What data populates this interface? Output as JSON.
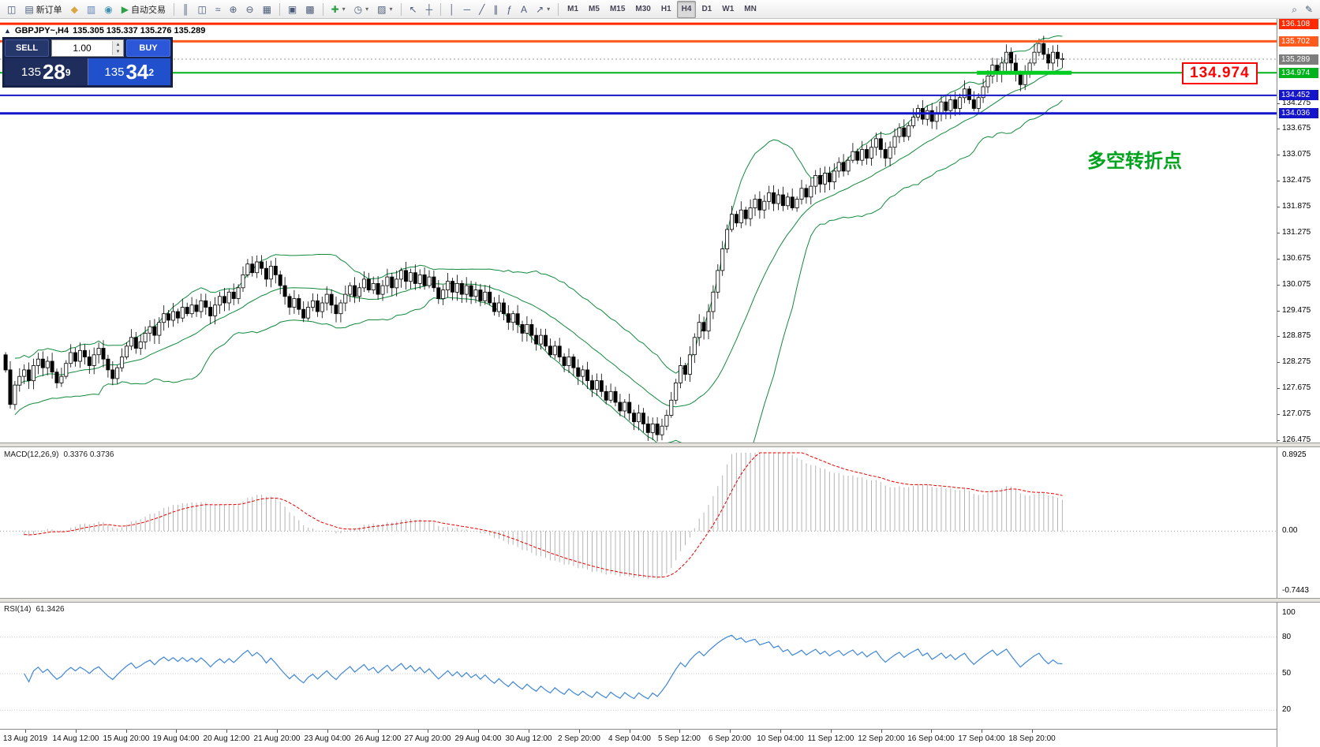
{
  "toolbar": {
    "caret_glyph": "▾",
    "groups": [
      {
        "name": "file-group",
        "items": [
          {
            "name": "new-chart",
            "glyph": "◫"
          },
          {
            "name": "new-order",
            "glyph": "▤",
            "label": "新订单"
          },
          {
            "name": "profiles",
            "glyph": "◆",
            "glyph_color": "#d9a441"
          },
          {
            "name": "charts-list",
            "glyph": "▥",
            "glyph_color": "#5b7fb9"
          },
          {
            "name": "signals",
            "glyph": "◉",
            "glyph_color": "#3f8fb0"
          },
          {
            "name": "autotrading",
            "glyph": "▶",
            "label": "自动交易",
            "glyph_color": "#2fa04a"
          }
        ]
      },
      {
        "name": "chart-type-group",
        "items": [
          {
            "name": "bar-chart-mode",
            "glyph": "║"
          },
          {
            "name": "candlestick-mode",
            "glyph": "◫"
          },
          {
            "name": "line-chart-mode",
            "glyph": "≈"
          },
          {
            "name": "zoom-in",
            "glyph": "⊕"
          },
          {
            "name": "zoom-out",
            "glyph": "⊖"
          },
          {
            "name": "grid-toggle",
            "glyph": "▦"
          }
        ]
      },
      {
        "name": "window-group",
        "items": [
          {
            "name": "tile-windows",
            "glyph": "▣"
          },
          {
            "name": "cascade-windows",
            "glyph": "▩"
          }
        ]
      },
      {
        "name": "tools-group",
        "items": [
          {
            "name": "indicators",
            "glyph": "✚",
            "glyph_color": "#2fa04a",
            "caret": true
          },
          {
            "name": "periods",
            "glyph": "◷",
            "caret": true
          },
          {
            "name": "templates",
            "glyph": "▨",
            "caret": true
          }
        ]
      },
      {
        "name": "cursor-group",
        "items": [
          {
            "name": "cursor",
            "glyph": "↖"
          },
          {
            "name": "crosshair",
            "glyph": "┼"
          }
        ]
      },
      {
        "name": "objects-group",
        "items": [
          {
            "name": "vertical-line-tool",
            "glyph": "│"
          },
          {
            "name": "horizontal-line-tool",
            "glyph": "─"
          },
          {
            "name": "trendline-tool",
            "glyph": "╱"
          },
          {
            "name": "channel-tool",
            "glyph": "∥"
          },
          {
            "name": "fibonacci-tool",
            "glyph": "ƒ"
          },
          {
            "name": "text-tool",
            "glyph": "A"
          },
          {
            "name": "arrows-tool",
            "glyph": "↗",
            "caret": true
          }
        ]
      }
    ],
    "timeframes": [
      "M1",
      "M5",
      "M15",
      "M30",
      "H1",
      "H4",
      "D1",
      "W1",
      "MN"
    ],
    "active_timeframe": "H4",
    "right_items": [
      {
        "name": "search",
        "glyph": "⌕"
      },
      {
        "name": "quick-edit",
        "glyph": "✎"
      }
    ]
  },
  "chart": {
    "collapse_glyph": "▲",
    "symbol_title": "GBPJPY~,H4",
    "ohlc": "135.305 135.337 135.276 135.289",
    "annotation": {
      "text": "多空转折点",
      "color": "#00a31e"
    },
    "key_level_label": "134.974",
    "key_level_color": "#ff0000",
    "macd_header": {
      "name": "MACD(12,26,9)",
      "values": "0.3376 0.3736"
    },
    "rsi_header": {
      "name": "RSI(14)",
      "value": "61.3426"
    }
  },
  "trade_panel": {
    "sell_label": "SELL",
    "buy_label": "BUY",
    "volume": "1.00",
    "spinner_up": "▴",
    "spinner_down": "▾",
    "sell_price": {
      "pre": "135",
      "big": "28",
      "sup": "9"
    },
    "buy_price": {
      "pre": "135",
      "big": "34",
      "sup": "2"
    }
  },
  "chart_data": {
    "type": "candlestick",
    "symbol": "GBPJPY",
    "timeframe": "H4",
    "price_axis": {
      "min": 126.42,
      "max": 136.22,
      "tick_step": 0.6,
      "ticks": [
        134.275,
        133.675,
        133.075,
        132.475,
        131.875,
        131.275,
        130.675,
        130.075,
        129.475,
        128.875,
        128.275,
        127.675,
        127.075,
        126.475
      ]
    },
    "x_labels": [
      "13 Aug 2019",
      "14 Aug 12:00",
      "15 Aug 20:00",
      "19 Aug 04:00",
      "20 Aug 12:00",
      "21 Aug 20:00",
      "23 Aug 04:00",
      "26 Aug 12:00",
      "27 Aug 20:00",
      "29 Aug 04:00",
      "30 Aug 12:00",
      "2 Sep 20:00",
      "4 Sep 04:00",
      "5 Sep 12:00",
      "6 Sep 20:00",
      "10 Sep 04:00",
      "11 Sep 12:00",
      "12 Sep 20:00",
      "16 Sep 04:00",
      "17 Sep 04:00",
      "18 Sep 20:00"
    ],
    "candles": {
      "first_open": 128.45,
      "closes": [
        128.1,
        127.3,
        127.75,
        127.95,
        128.1,
        127.85,
        128.2,
        128.35,
        128.15,
        128.3,
        128.05,
        127.8,
        127.95,
        128.25,
        128.5,
        128.3,
        128.55,
        128.4,
        128.2,
        128.45,
        128.6,
        128.35,
        128.1,
        127.9,
        128.15,
        128.4,
        128.65,
        128.85,
        128.6,
        128.75,
        128.95,
        129.1,
        128.9,
        129.2,
        129.4,
        129.25,
        129.45,
        129.3,
        129.55,
        129.4,
        129.6,
        129.45,
        129.7,
        129.55,
        129.35,
        129.6,
        129.8,
        129.65,
        129.9,
        129.75,
        130.0,
        130.3,
        130.55,
        130.35,
        130.6,
        130.45,
        130.2,
        130.5,
        130.3,
        130.05,
        129.8,
        129.55,
        129.75,
        129.5,
        129.3,
        129.55,
        129.7,
        129.45,
        129.65,
        129.85,
        129.6,
        129.4,
        129.65,
        129.85,
        130.05,
        129.8,
        130.0,
        130.2,
        129.95,
        130.1,
        129.85,
        130.05,
        130.25,
        130.0,
        130.2,
        130.4,
        130.15,
        130.35,
        130.1,
        130.3,
        130.05,
        130.25,
        130.0,
        129.75,
        129.95,
        130.15,
        129.9,
        130.1,
        129.85,
        130.05,
        129.8,
        129.95,
        129.7,
        129.9,
        129.65,
        129.45,
        129.65,
        129.4,
        129.2,
        129.4,
        129.15,
        128.95,
        129.15,
        128.9,
        128.7,
        128.9,
        128.65,
        128.45,
        128.65,
        128.4,
        128.2,
        128.4,
        128.15,
        127.95,
        128.1,
        127.85,
        127.65,
        127.85,
        127.6,
        127.4,
        127.6,
        127.35,
        127.15,
        127.35,
        127.1,
        126.9,
        127.1,
        126.85,
        126.65,
        126.85,
        126.6,
        126.8,
        127.05,
        127.4,
        127.8,
        128.2,
        128.0,
        128.45,
        128.85,
        129.2,
        129.0,
        129.45,
        129.9,
        130.4,
        130.9,
        131.35,
        131.7,
        131.5,
        131.8,
        131.6,
        131.85,
        132.05,
        131.8,
        132.0,
        132.2,
        131.95,
        132.15,
        131.9,
        132.1,
        131.85,
        132.05,
        132.3,
        132.1,
        132.35,
        132.6,
        132.4,
        132.65,
        132.45,
        132.7,
        132.9,
        132.7,
        132.95,
        133.15,
        132.95,
        133.2,
        133.0,
        133.25,
        133.45,
        133.2,
        133.0,
        133.25,
        133.5,
        133.7,
        133.5,
        133.75,
        133.95,
        134.15,
        133.9,
        134.1,
        133.85,
        134.05,
        134.3,
        134.1,
        134.35,
        134.15,
        134.4,
        134.6,
        134.35,
        134.15,
        134.4,
        134.65,
        134.9,
        135.15,
        134.95,
        135.2,
        135.45,
        135.2,
        134.95,
        134.7,
        134.95,
        135.2,
        135.45,
        135.65,
        135.4,
        135.2,
        135.45,
        135.3,
        135.289
      ]
    },
    "bollinger": {
      "period": 20,
      "deviation": 2,
      "color": "#118a3c"
    },
    "levels": [
      {
        "price": 136.108,
        "label": "136.108",
        "color": "#ff2a00",
        "width": 3
      },
      {
        "price": 135.702,
        "label": "135.702",
        "color": "#ff5a1e",
        "width": 3
      },
      {
        "price": 134.974,
        "label": "134.974",
        "color": "#00b21b",
        "width": 2
      },
      {
        "price": 134.452,
        "label": "134.452",
        "color": "#1414c8",
        "width": 2
      },
      {
        "price": 134.036,
        "label": "134.036",
        "color": "#1414c8",
        "width": 3
      }
    ],
    "highlight_segment": {
      "price": 134.974,
      "from_bar": 209,
      "to_bar": 229,
      "color": "#00cc22",
      "width": 5
    },
    "current_price": {
      "value": 135.289,
      "label": "135.289",
      "color": "#7d7d7d"
    },
    "macd": {
      "params": [
        12,
        26,
        9
      ],
      "scale_labels": {
        "max": "0.8925",
        "zero": "0.00",
        "min": "-0.7443"
      },
      "histogram_color": "#b4b4b4",
      "signal_color": "#e60000"
    },
    "rsi": {
      "params": [
        14
      ],
      "color": "#3e86d8",
      "levels": [
        80,
        50,
        20
      ],
      "scale_labels": [
        "100",
        "80",
        "50",
        "20"
      ]
    }
  }
}
